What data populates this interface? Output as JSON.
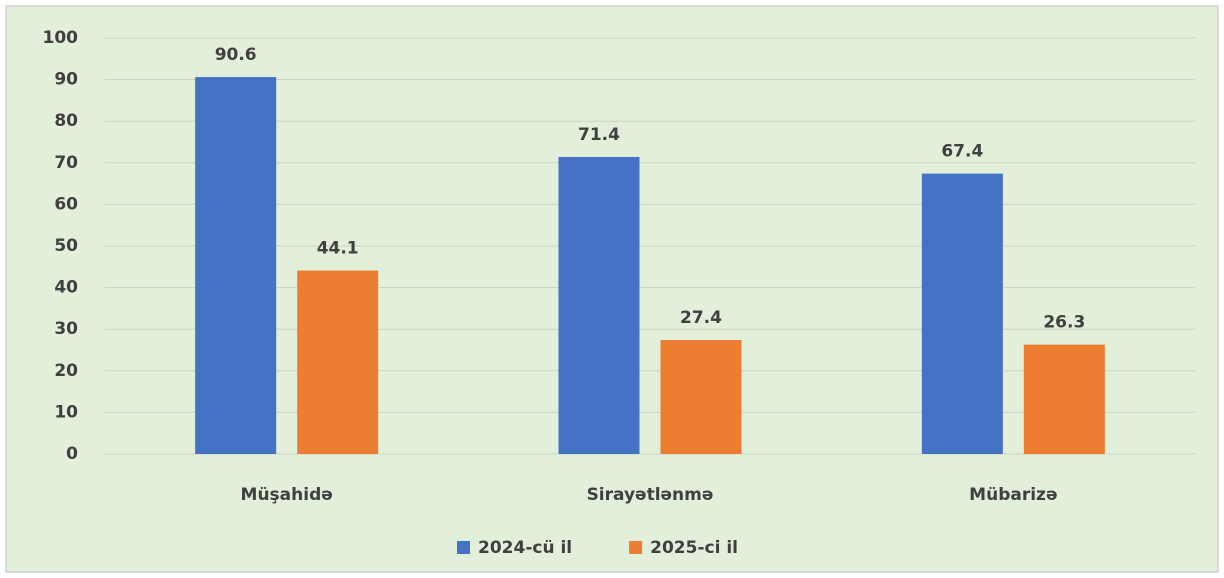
{
  "chart_data": {
    "type": "bar",
    "categories": [
      "Müşahidə",
      "Sirayətlənmə",
      "Mübarizə"
    ],
    "series": [
      {
        "name": "2024-cü il",
        "color": "#4472c4",
        "values": [
          90.6,
          71.4,
          67.4
        ]
      },
      {
        "name": "2025-ci il",
        "color": "#ed7d31",
        "values": [
          44.1,
          27.4,
          26.3
        ]
      }
    ],
    "ylim": [
      0,
      100
    ],
    "yticks": [
      0,
      10,
      20,
      30,
      40,
      50,
      60,
      70,
      80,
      90,
      100
    ],
    "grid": true,
    "legend": "bottom"
  }
}
